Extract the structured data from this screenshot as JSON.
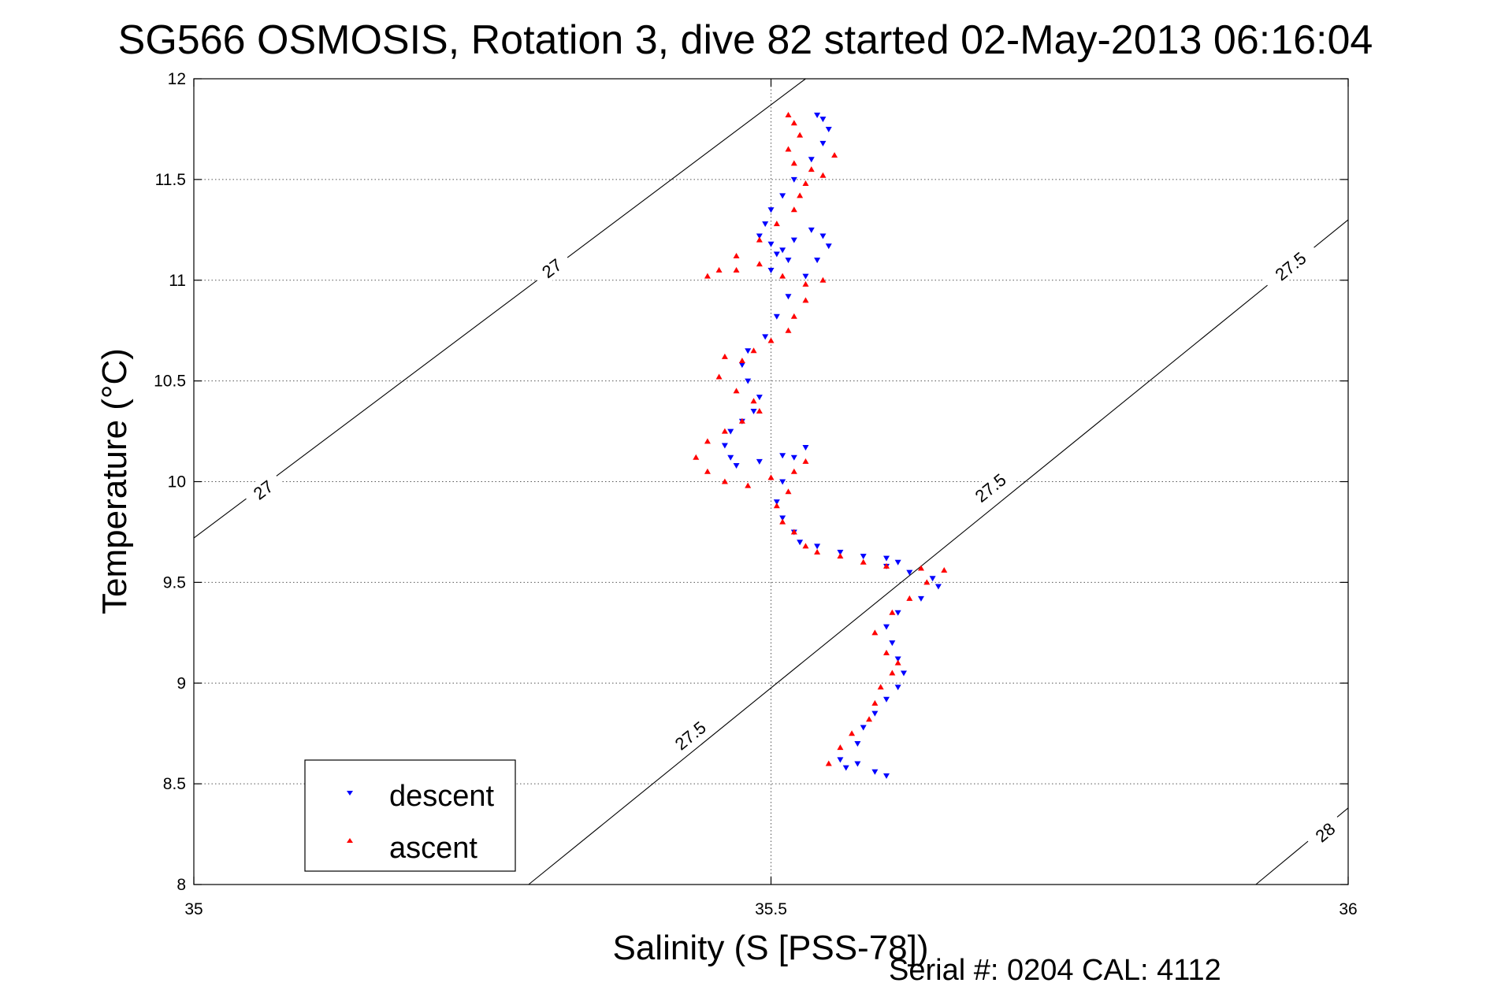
{
  "chart_data": {
    "type": "scatter",
    "title": "SG566 OSMOSIS, Rotation 3, dive 82 started 02-May-2013 06:16:04",
    "xlabel": "Salinity (S [PSS-78])",
    "ylabel": "Temperature (°C)",
    "xlim": [
      35,
      36
    ],
    "ylim": [
      8,
      12
    ],
    "x_ticks": [
      "35",
      "35.5",
      "36"
    ],
    "y_ticks": [
      "8",
      "8.5",
      "9",
      "9.5",
      "10",
      "10.5",
      "11",
      "11.5",
      "12"
    ],
    "grid": true,
    "legend_position": "bottom-left",
    "footer": "Serial #: 0204  CAL: 4112",
    "density_contours": [
      {
        "label": "27",
        "points": [
          [
            35.0,
            9.72
          ],
          [
            35.53,
            12.0
          ]
        ],
        "label_positions": [
          [
            35.06,
            9.96
          ],
          [
            35.31,
            11.06
          ]
        ]
      },
      {
        "label": "27.5",
        "points": [
          [
            35.29,
            8.0
          ],
          [
            36.0,
            11.3
          ]
        ],
        "label_positions": [
          [
            35.43,
            8.74
          ],
          [
            35.69,
            9.97
          ],
          [
            35.95,
            11.07
          ]
        ]
      },
      {
        "label": "28",
        "points": [
          [
            35.92,
            8.0
          ],
          [
            36.0,
            8.38
          ]
        ],
        "label_positions": [
          [
            35.98,
            8.26
          ]
        ]
      }
    ],
    "series": [
      {
        "name": "descent",
        "color": "#0000ff",
        "marker": "triangle-down",
        "x": [
          35.54,
          35.545,
          35.55,
          35.545,
          35.535,
          35.52,
          35.51,
          35.5,
          35.495,
          35.49,
          35.5,
          35.51,
          35.515,
          35.5,
          35.505,
          35.52,
          35.535,
          35.545,
          35.55,
          35.54,
          35.53,
          35.515,
          35.505,
          35.495,
          35.48,
          35.475,
          35.48,
          35.49,
          35.485,
          35.475,
          35.465,
          35.46,
          35.465,
          35.47,
          35.49,
          35.51,
          35.53,
          35.52,
          35.51,
          35.505,
          35.51,
          35.52,
          35.525,
          35.54,
          35.56,
          35.58,
          35.6,
          35.61,
          35.6,
          35.62,
          35.64,
          35.645,
          35.63,
          35.61,
          35.6,
          35.605,
          35.61,
          35.615,
          35.61,
          35.6,
          35.59,
          35.58,
          35.575,
          35.56,
          35.565,
          35.575,
          35.59,
          35.6
        ],
        "y": [
          11.82,
          11.8,
          11.75,
          11.68,
          11.6,
          11.5,
          11.42,
          11.35,
          11.28,
          11.22,
          11.18,
          11.15,
          11.1,
          11.05,
          11.13,
          11.2,
          11.25,
          11.22,
          11.17,
          11.1,
          11.02,
          10.92,
          10.82,
          10.72,
          10.65,
          10.58,
          10.5,
          10.42,
          10.35,
          10.3,
          10.25,
          10.18,
          10.12,
          10.08,
          10.1,
          10.13,
          10.17,
          10.12,
          10.0,
          9.9,
          9.82,
          9.75,
          9.7,
          9.68,
          9.65,
          9.63,
          9.62,
          9.6,
          9.58,
          9.55,
          9.52,
          9.48,
          9.42,
          9.35,
          9.28,
          9.2,
          9.12,
          9.05,
          8.98,
          8.92,
          8.85,
          8.78,
          8.7,
          8.62,
          8.58,
          8.6,
          8.56,
          8.54
        ]
      },
      {
        "name": "ascent",
        "color": "#ff0000",
        "marker": "triangle-up",
        "x": [
          35.515,
          35.52,
          35.525,
          35.515,
          35.52,
          35.535,
          35.555,
          35.545,
          35.53,
          35.525,
          35.52,
          35.505,
          35.49,
          35.47,
          35.455,
          35.445,
          35.47,
          35.49,
          35.51,
          35.53,
          35.545,
          35.53,
          35.52,
          35.515,
          35.5,
          35.485,
          35.475,
          35.46,
          35.455,
          35.47,
          35.485,
          35.49,
          35.475,
          35.46,
          35.445,
          35.435,
          35.445,
          35.46,
          35.48,
          35.5,
          35.52,
          35.53,
          35.515,
          35.505,
          35.51,
          35.52,
          35.53,
          35.54,
          35.56,
          35.58,
          35.6,
          35.63,
          35.65,
          35.635,
          35.62,
          35.605,
          35.59,
          35.6,
          35.61,
          35.605,
          35.595,
          35.59,
          35.585,
          35.57,
          35.56,
          35.55
        ],
        "y": [
          11.82,
          11.78,
          11.72,
          11.65,
          11.58,
          11.55,
          11.62,
          11.52,
          11.48,
          11.42,
          11.35,
          11.28,
          11.2,
          11.12,
          11.05,
          11.02,
          11.05,
          11.08,
          11.02,
          10.98,
          11.0,
          10.9,
          10.82,
          10.75,
          10.7,
          10.65,
          10.6,
          10.62,
          10.52,
          10.45,
          10.4,
          10.35,
          10.3,
          10.25,
          10.2,
          10.12,
          10.05,
          10.0,
          9.98,
          10.02,
          10.05,
          10.1,
          9.95,
          9.88,
          9.8,
          9.75,
          9.68,
          9.65,
          9.63,
          9.6,
          9.58,
          9.57,
          9.56,
          9.5,
          9.42,
          9.35,
          9.25,
          9.15,
          9.1,
          9.05,
          8.98,
          8.9,
          8.82,
          8.75,
          8.68,
          8.6
        ]
      }
    ]
  }
}
